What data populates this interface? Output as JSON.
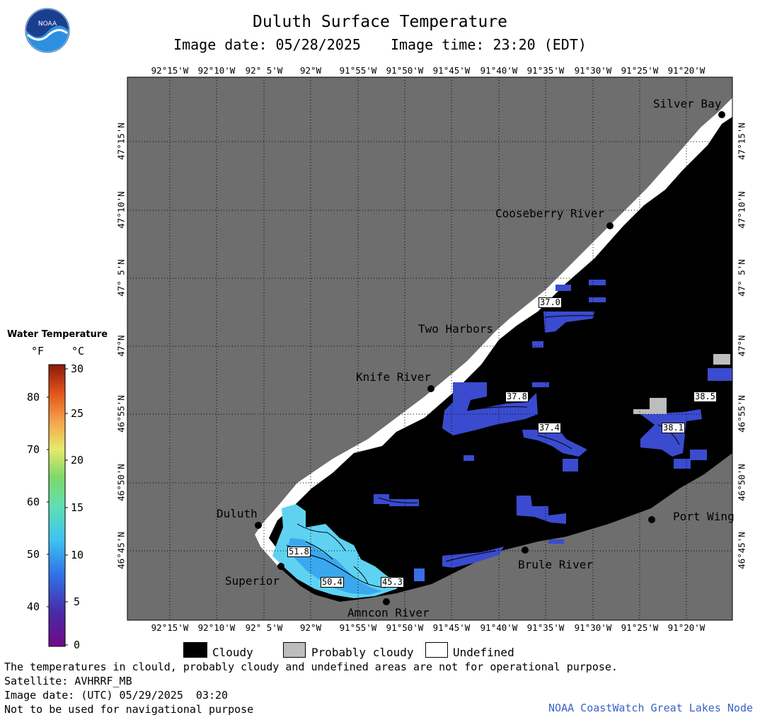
{
  "header": {
    "title": "Duluth Surface Temperature",
    "image_date": "Image date: 05/28/2025",
    "image_time": "Image time: 23:20 (EDT)",
    "logo_text": "NOAA"
  },
  "axes": {
    "lon_labels": [
      "92°15'W",
      "92°10'W",
      "92° 5'W",
      "92°W",
      "91°55'W",
      "91°50'W",
      "91°45'W",
      "91°40'W",
      "91°35'W",
      "91°30'W",
      "91°25'W",
      "91°20'W"
    ],
    "lat_labels": [
      "47°15'N",
      "47°10'N",
      "47° 5'N",
      "47°N",
      "46°55'N",
      "46°50'N",
      "46°45'N"
    ]
  },
  "places": [
    {
      "name": "Silver Bay",
      "key": "silver-bay"
    },
    {
      "name": "Cooseberry River",
      "key": "gooseberry-river"
    },
    {
      "name": "Two Harbors",
      "key": "two-harbors"
    },
    {
      "name": "Knife River",
      "key": "knife-river"
    },
    {
      "name": "Duluth",
      "key": "duluth"
    },
    {
      "name": "Superior",
      "key": "superior"
    },
    {
      "name": "Amncon River",
      "key": "amnicon-river"
    },
    {
      "name": "Brule River",
      "key": "brule-river"
    },
    {
      "name": "Port Wing",
      "key": "port-wing"
    }
  ],
  "temperature_labels": [
    "37.0",
    "37.8",
    "37.4",
    "38.5",
    "38.1",
    "51.8",
    "50.4",
    "45.3"
  ],
  "colorbar": {
    "title": "Water Temperature",
    "unit_f": "°F",
    "unit_c": "°C",
    "f_ticks": [
      "80",
      "70",
      "60",
      "50",
      "40"
    ],
    "c_ticks": [
      "30",
      "25",
      "20",
      "15",
      "10",
      "5",
      "0"
    ]
  },
  "legend": {
    "cloudy": "Cloudy",
    "probably_cloudy": "Probably cloudy",
    "undefined": "Undefined",
    "colors": {
      "cloudy": "#000000",
      "probably_cloudy": "#bdbdbd",
      "undefined": "#ffffff",
      "land": "#6e6e6e"
    }
  },
  "footer": {
    "disclaimer": "The temperatures in clould, probably cloudy and undefined areas are not for operational purpose.",
    "satellite": "Satellite: AVHRRF_MB",
    "utc_date": "Image date: (UTC) 05/29/2025  03:20",
    "nav_warning": "Not to be used for navigational purpose",
    "credit": "NOAA CoastWatch Great Lakes Node"
  }
}
